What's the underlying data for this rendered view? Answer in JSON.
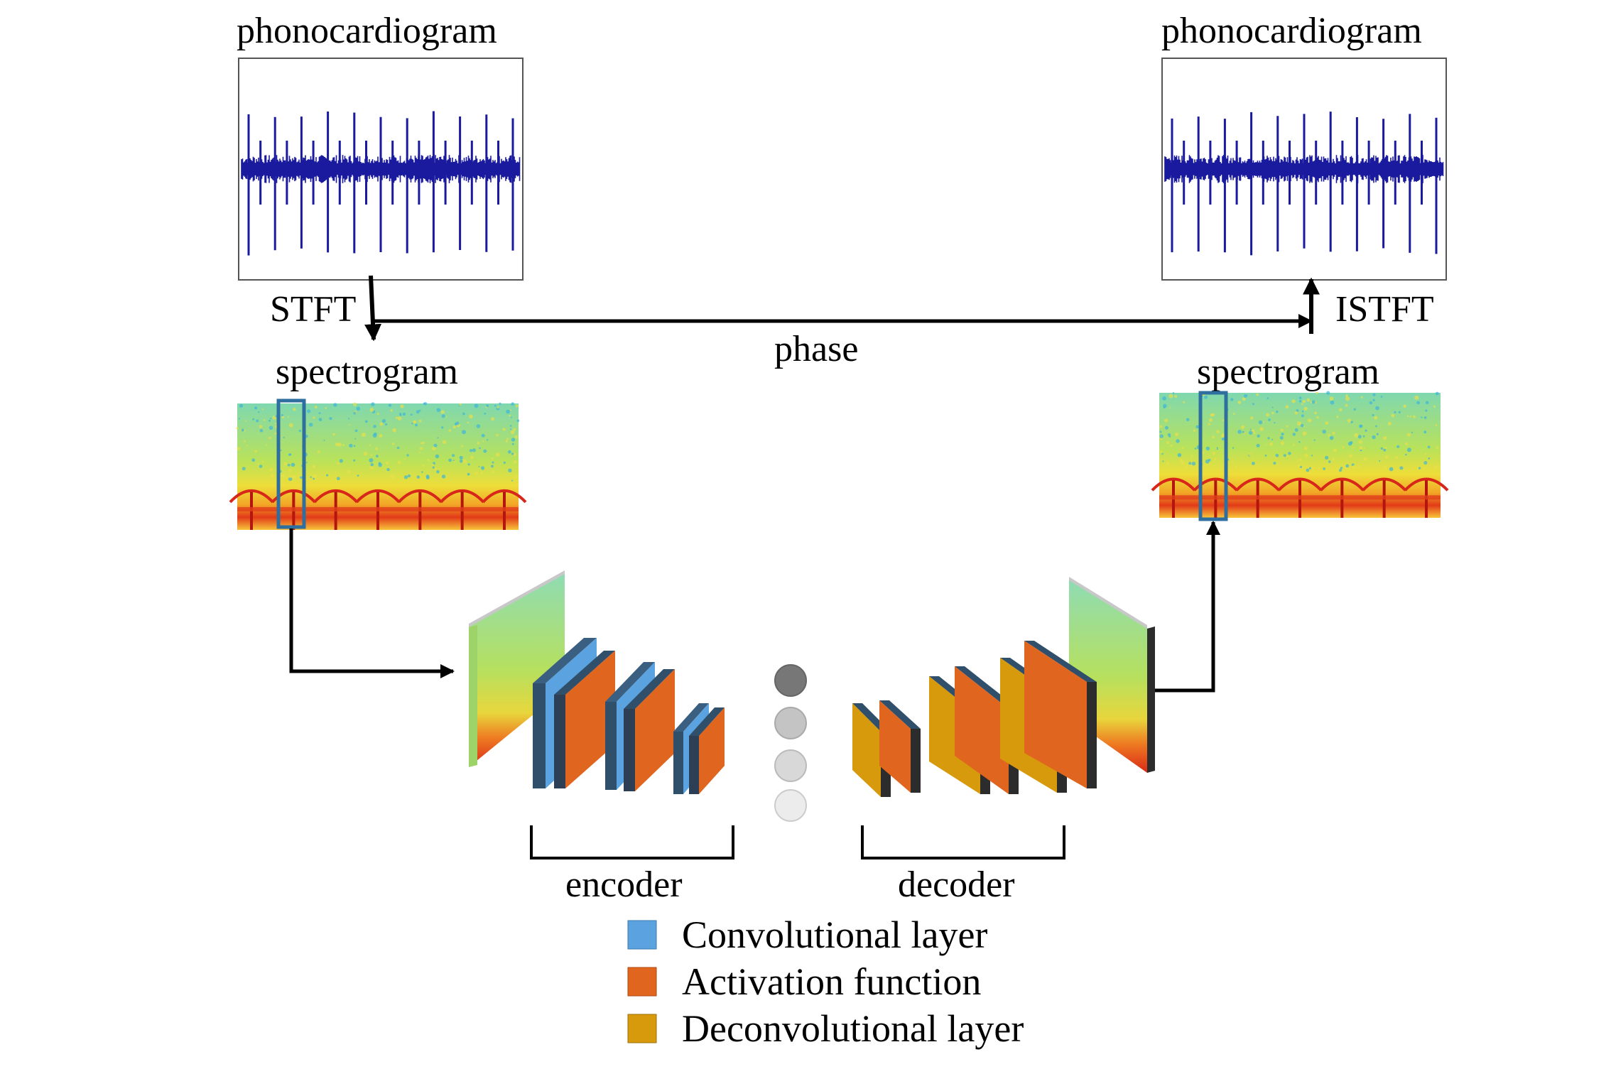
{
  "labels": {
    "input_signal": "phonocardiogram",
    "output_signal": "phonocardiogram",
    "stft": "STFT",
    "istft": "ISTFT",
    "phase": "phase",
    "input_spectrogram": "spectrogram",
    "output_spectrogram": "spectrogram",
    "encoder": "encoder",
    "decoder": "decoder"
  },
  "legend": [
    {
      "label": "Convolutional layer",
      "color": "#5ba3e0"
    },
    {
      "label": "Activation function",
      "color": "#e0651e"
    },
    {
      "label": "Deconvolutional layer",
      "color": "#d69a0c"
    }
  ],
  "colors": {
    "waveform": "#1a1a9e",
    "highlight_box": "#2f6f9f",
    "layer_edge": "#2f4f6a",
    "bottleneck_nodes": [
      "#777777",
      "#c4c4c4",
      "#d8d8d8",
      "#ececec"
    ]
  },
  "icons": [
    "waveform-plot",
    "spectrogram-heatmap",
    "arrow"
  ]
}
